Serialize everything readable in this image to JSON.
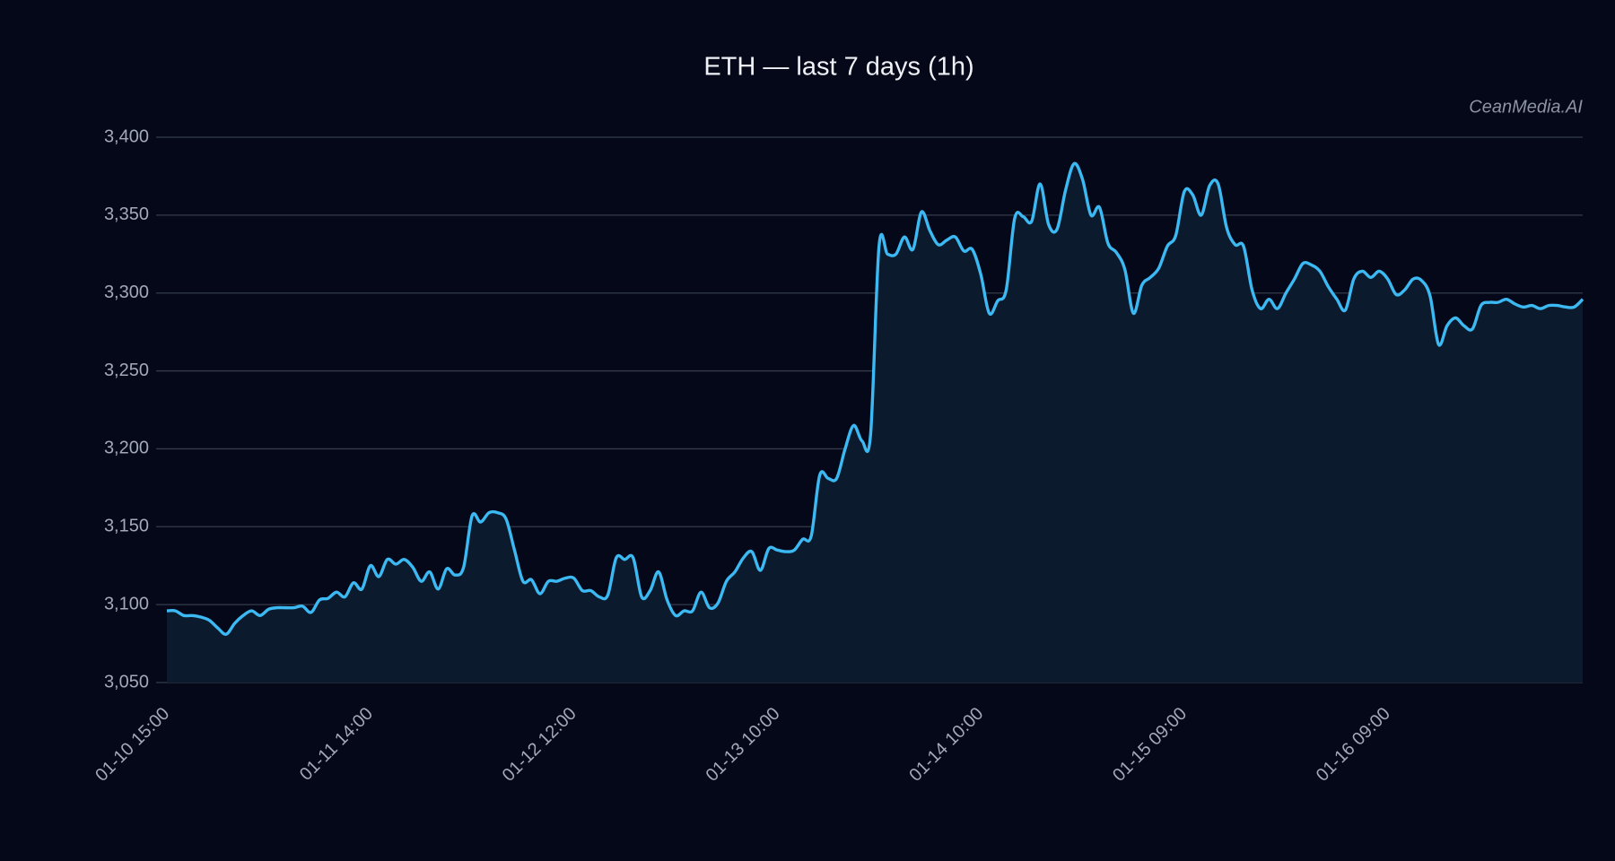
{
  "chart_data": {
    "type": "line",
    "title": "ETH — last 7 days (1h)",
    "watermark": "CeanMedia.AI",
    "categories": [
      "01-10 15:00",
      null,
      null,
      null,
      null,
      null,
      null,
      null,
      null,
      null,
      null,
      null,
      null,
      null,
      null,
      null,
      null,
      null,
      null,
      null,
      null,
      null,
      null,
      null,
      "01-11 14:00",
      null,
      null,
      null,
      null,
      null,
      null,
      null,
      null,
      null,
      null,
      null,
      null,
      null,
      null,
      null,
      null,
      null,
      null,
      null,
      null,
      null,
      null,
      null,
      "01-12 12:00",
      null,
      null,
      null,
      null,
      null,
      null,
      null,
      null,
      null,
      null,
      null,
      null,
      null,
      null,
      null,
      null,
      null,
      null,
      null,
      null,
      null,
      null,
      null,
      "01-13 10:00",
      null,
      null,
      null,
      null,
      null,
      null,
      null,
      null,
      null,
      null,
      null,
      null,
      null,
      null,
      null,
      null,
      null,
      null,
      null,
      null,
      null,
      null,
      null,
      "01-14 10:00",
      null,
      null,
      null,
      null,
      null,
      null,
      null,
      null,
      null,
      null,
      null,
      null,
      null,
      null,
      null,
      null,
      null,
      null,
      null,
      null,
      null,
      null,
      null,
      "01-15 09:00",
      null,
      null,
      null,
      null,
      null,
      null,
      null,
      null,
      null,
      null,
      null,
      null,
      null,
      null,
      null,
      null,
      null,
      null,
      null,
      null,
      null,
      null,
      null,
      "01-16 09:00",
      null,
      null,
      null,
      null,
      null,
      null,
      null,
      null,
      null,
      null,
      null,
      null,
      null,
      null,
      null,
      null,
      null,
      null,
      null,
      null,
      null,
      null,
      null
    ],
    "series": [
      {
        "name": "ETH",
        "color": "#3cb9f2",
        "values": [
          3096,
          3096,
          3093,
          3093,
          3092,
          3090,
          3085,
          3081,
          3088,
          3093,
          3096,
          3093,
          3097,
          3098,
          3098,
          3098,
          3099,
          3095,
          3103,
          3104,
          3108,
          3105,
          3114,
          3110,
          3125,
          3118,
          3129,
          3126,
          3129,
          3124,
          3115,
          3121,
          3110,
          3123,
          3119,
          3124,
          3157,
          3153,
          3159,
          3159,
          3155,
          3135,
          3115,
          3116,
          3107,
          3115,
          3115,
          3117,
          3117,
          3109,
          3109,
          3105,
          3106,
          3130,
          3129,
          3130,
          3105,
          3109,
          3121,
          3103,
          3093,
          3096,
          3096,
          3108,
          3098,
          3101,
          3115,
          3121,
          3130,
          3134,
          3122,
          3136,
          3135,
          3134,
          3135,
          3142,
          3144,
          3183,
          3181,
          3181,
          3200,
          3215,
          3205,
          3209,
          3330,
          3325,
          3325,
          3336,
          3328,
          3352,
          3340,
          3331,
          3334,
          3336,
          3327,
          3328,
          3312,
          3287,
          3295,
          3302,
          3348,
          3349,
          3346,
          3370,
          3344,
          3341,
          3366,
          3383,
          3373,
          3350,
          3355,
          3332,
          3326,
          3315,
          3287,
          3305,
          3310,
          3316,
          3330,
          3337,
          3365,
          3363,
          3350,
          3369,
          3370,
          3342,
          3331,
          3330,
          3302,
          3290,
          3296,
          3290,
          3300,
          3309,
          3319,
          3318,
          3314,
          3304,
          3296,
          3289,
          3309,
          3314,
          3310,
          3314,
          3309,
          3299,
          3302,
          3309,
          3308,
          3298,
          3267,
          3279,
          3284,
          3279,
          3277,
          3292,
          3294,
          3294,
          3296,
          3293,
          3291,
          3292,
          3290,
          3292,
          3292,
          3291,
          3291,
          3296
        ]
      }
    ],
    "ylim": [
      3050,
      3400
    ],
    "yticks": [
      {
        "value": 3050,
        "label": "3,050"
      },
      {
        "value": 3100,
        "label": "3,100"
      },
      {
        "value": 3150,
        "label": "3,150"
      },
      {
        "value": 3200,
        "label": "3,200"
      },
      {
        "value": 3250,
        "label": "3,250"
      },
      {
        "value": 3300,
        "label": "3,300"
      },
      {
        "value": 3350,
        "label": "3,350"
      },
      {
        "value": 3400,
        "label": "3,400"
      }
    ],
    "grid": true
  }
}
